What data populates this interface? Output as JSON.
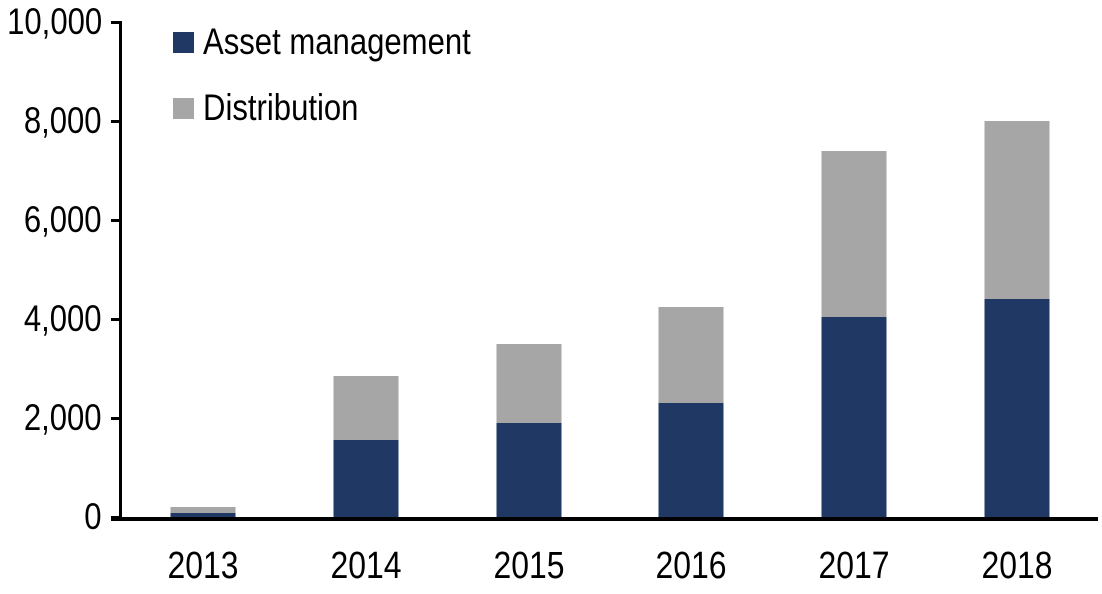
{
  "chart_data": {
    "type": "bar",
    "stacked": true,
    "title": "",
    "xlabel": "",
    "ylabel": "",
    "categories": [
      "2013",
      "2014",
      "2015",
      "2016",
      "2017",
      "2018"
    ],
    "series": [
      {
        "name": "Asset management",
        "color": "#1F3864",
        "values": [
          80,
          1550,
          1900,
          2300,
          4050,
          4400
        ]
      },
      {
        "name": "Distribution",
        "color": "#A6A6A6",
        "values": [
          120,
          1300,
          1600,
          1950,
          3350,
          3600
        ]
      }
    ],
    "totals": [
      200,
      2850,
      3500,
      4250,
      7400,
      8000
    ],
    "ylim": [
      0,
      10000
    ],
    "ytick_values": [
      0,
      2000,
      4000,
      6000,
      8000,
      10000
    ],
    "ytick_labels": [
      "0",
      "2,000",
      "4,000",
      "6,000",
      "8,000",
      "10,000"
    ],
    "legend_position": "top-left",
    "grid": false
  },
  "colors": {
    "axis": "#000000",
    "text": "#000000",
    "background": "#FFFFFF"
  }
}
